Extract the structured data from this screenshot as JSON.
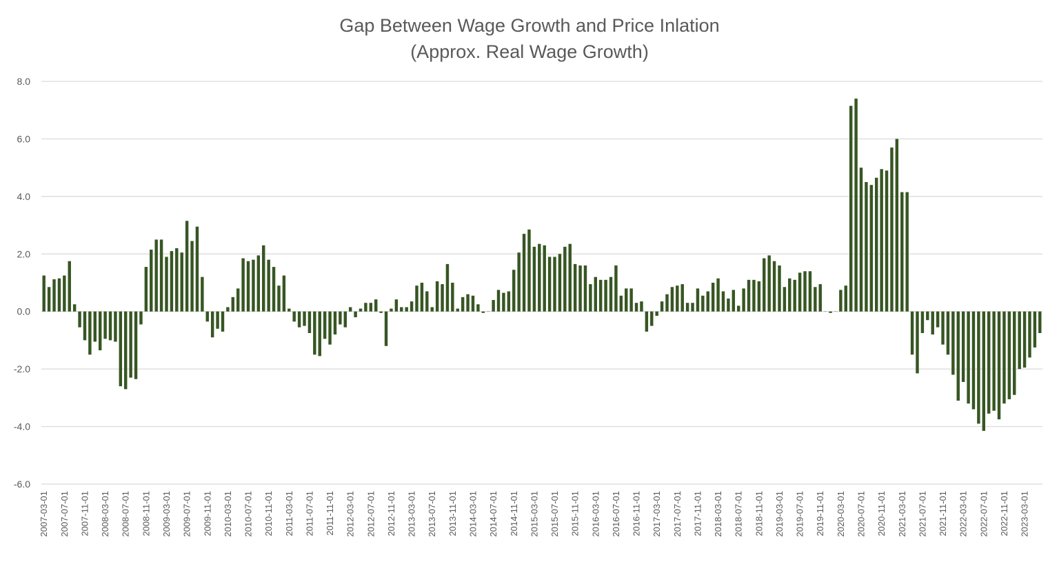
{
  "chart_data": {
    "type": "bar",
    "title": "Gap Between Wage Growth and Price Inlation",
    "subtitle": "(Approx. Real Wage Growth)",
    "xlabel": "",
    "ylabel": "",
    "ylim": [
      -6,
      8
    ],
    "y_ticks": [
      "8.0",
      "6.0",
      "4.0",
      "2.0",
      "0.0",
      "-2.0",
      "-4.0",
      "-6.0"
    ],
    "grid": true,
    "legend": "none",
    "bar_color": "#375623",
    "x_tick_labels": [
      "2007-03-01",
      "2007-07-01",
      "2007-11-01",
      "2008-03-01",
      "2008-07-01",
      "2008-11-01",
      "2009-03-01",
      "2009-07-01",
      "2009-11-01",
      "2010-03-01",
      "2010-07-01",
      "2010-11-01",
      "2011-03-01",
      "2011-07-01",
      "2011-11-01",
      "2012-03-01",
      "2012-07-01",
      "2012-11-01",
      "2013-03-01",
      "2013-07-01",
      "2013-11-01",
      "2014-03-01",
      "2014-07-01",
      "2014-11-01",
      "2015-03-01",
      "2015-07-01",
      "2015-11-01",
      "2016-03-01",
      "2016-07-01",
      "2016-11-01",
      "2017-03-01",
      "2017-07-01",
      "2017-11-01",
      "2018-03-01",
      "2018-07-01",
      "2018-11-01",
      "2019-03-01",
      "2019-07-01",
      "2019-11-01",
      "2020-03-01",
      "2020-07-01",
      "2020-11-01",
      "2021-03-01",
      "2021-07-01",
      "2021-11-01",
      "2022-03-01",
      "2022-07-01",
      "2022-11-01",
      "2023-03-01"
    ],
    "start_month": "2007-03",
    "values": [
      1.25,
      0.85,
      1.12,
      1.15,
      1.25,
      1.75,
      0.25,
      -0.55,
      -1.0,
      -1.5,
      -1.05,
      -1.35,
      -0.95,
      -1.0,
      -1.05,
      -2.6,
      -2.7,
      -2.3,
      -2.35,
      -0.45,
      1.55,
      2.15,
      2.5,
      2.5,
      1.9,
      2.1,
      2.2,
      2.05,
      3.15,
      2.45,
      2.95,
      1.2,
      -0.35,
      -0.9,
      -0.6,
      -0.7,
      0.15,
      0.5,
      0.8,
      1.85,
      1.75,
      1.8,
      1.95,
      2.3,
      1.8,
      1.55,
      0.9,
      1.25,
      0.1,
      -0.35,
      -0.55,
      -0.5,
      -0.75,
      -1.5,
      -1.55,
      -0.95,
      -1.15,
      -0.8,
      -0.45,
      -0.55,
      0.15,
      -0.2,
      0.1,
      0.3,
      0.3,
      0.42,
      -0.05,
      -1.2,
      0.1,
      0.42,
      0.15,
      0.15,
      0.35,
      0.9,
      1.0,
      0.7,
      0.15,
      1.05,
      0.95,
      1.65,
      1.0,
      0.1,
      0.5,
      0.6,
      0.55,
      0.25,
      -0.05,
      0.0,
      0.4,
      0.75,
      0.65,
      0.7,
      1.45,
      2.05,
      2.7,
      2.85,
      2.25,
      2.35,
      2.3,
      1.9,
      1.9,
      2.0,
      2.25,
      2.35,
      1.65,
      1.6,
      1.6,
      0.95,
      1.2,
      1.1,
      1.1,
      1.2,
      1.6,
      0.55,
      0.8,
      0.8,
      0.3,
      0.35,
      -0.7,
      -0.5,
      -0.15,
      0.35,
      0.6,
      0.85,
      0.9,
      0.95,
      0.3,
      0.3,
      0.8,
      0.55,
      0.7,
      1.0,
      1.15,
      0.7,
      0.45,
      0.75,
      0.2,
      0.8,
      1.1,
      1.1,
      1.05,
      1.85,
      1.95,
      1.75,
      1.6,
      0.85,
      1.15,
      1.1,
      1.35,
      1.4,
      1.4,
      0.85,
      0.95,
      0.0,
      -0.05,
      0.0,
      0.75,
      0.9,
      7.15,
      7.4,
      5.0,
      4.5,
      4.4,
      4.65,
      4.95,
      4.9,
      5.7,
      6.0,
      4.15,
      4.15,
      -1.5,
      -2.15,
      -0.75,
      -0.3,
      -0.8,
      -0.55,
      -1.15,
      -1.5,
      -2.2,
      -3.1,
      -2.45,
      -3.2,
      -3.4,
      -3.9,
      -4.15,
      -3.55,
      -3.45,
      -3.75,
      -3.2,
      -3.05,
      -2.9,
      -2.0,
      -1.95,
      -1.6,
      -1.25,
      -0.75
    ]
  }
}
